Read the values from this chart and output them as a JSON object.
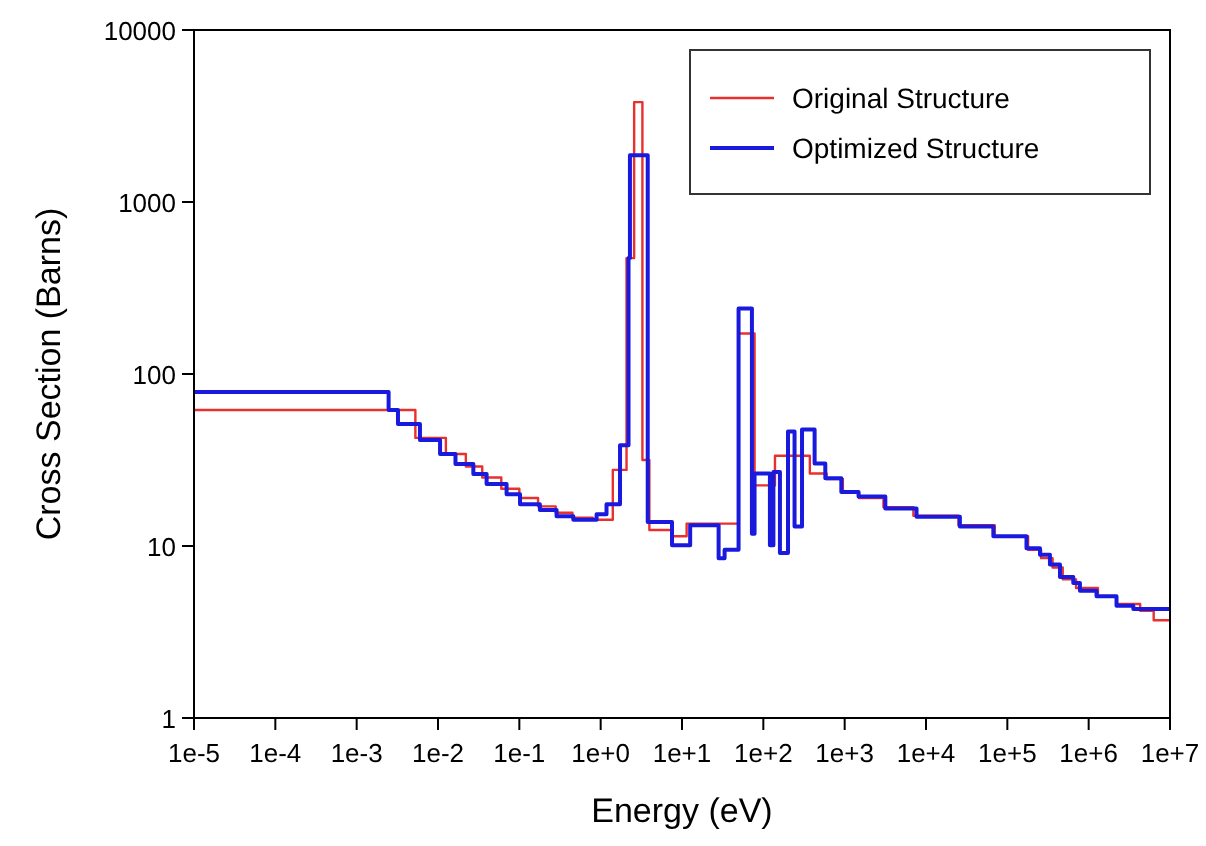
{
  "chart_data": {
    "type": "step",
    "xlabel": "Energy (eV)",
    "ylabel": "Cross Section (Barns)",
    "log": "xy",
    "grid": false,
    "legend": "top right",
    "xlim": [
      1e-05,
      10000000
    ],
    "ylim": [
      1,
      10000
    ],
    "xticks": [
      {
        "value": 1e-05,
        "label": "1e-5"
      },
      {
        "value": 0.0001,
        "label": "1e-4"
      },
      {
        "value": 0.001,
        "label": "1e-3"
      },
      {
        "value": 0.01,
        "label": "1e-2"
      },
      {
        "value": 0.1,
        "label": "1e-1"
      },
      {
        "value": 1,
        "label": "1e+0"
      },
      {
        "value": 10,
        "label": "1e+1"
      },
      {
        "value": 100,
        "label": "1e+2"
      },
      {
        "value": 1000,
        "label": "1e+3"
      },
      {
        "value": 10000,
        "label": "1e+4"
      },
      {
        "value": 100000,
        "label": "1e+5"
      },
      {
        "value": 1000000,
        "label": "1e+6"
      },
      {
        "value": 10000000,
        "label": "1e+7"
      }
    ],
    "yticks": [
      1,
      10,
      100,
      1000,
      10000
    ],
    "series": [
      {
        "name": "Original Structure",
        "color": "#e8302f",
        "x": [
          1e-05,
          0.00527,
          0.0125,
          0.022,
          0.035,
          0.06,
          0.1,
          0.17,
          0.28,
          0.45,
          0.8,
          1.41,
          2.08,
          2.58,
          3.26,
          3.97,
          7.54,
          11.4,
          49.6,
          78,
          139,
          373,
          600,
          950,
          1500,
          3000,
          7000,
          25000,
          70000,
          180000,
          260000,
          360000,
          480000,
          700000,
          1300000,
          2200000,
          4300000,
          6300000,
          10000000
        ],
        "values": [
          61.8,
          42.5,
          34.3,
          29,
          25,
          21.5,
          19,
          17,
          15.6,
          14.6,
          14.2,
          27.7,
          472,
          3810,
          31.6,
          12.4,
          11.4,
          13.5,
          172,
          22.5,
          33.5,
          26.4,
          24.5,
          20.5,
          19,
          16.8,
          15,
          13.2,
          11.4,
          9.5,
          8.5,
          7.5,
          6.4,
          5.7,
          5.1,
          4.6,
          4.2,
          3.7,
          3.7
        ]
      },
      {
        "name": "Optimized Structure",
        "color": "#1a1adf",
        "x": [
          1e-05,
          0.00247,
          0.00322,
          0.006,
          0.0106,
          0.0164,
          0.0272,
          0.0396,
          0.0697,
          0.102,
          0.179,
          0.287,
          0.461,
          0.891,
          1.18,
          1.73,
          2.2,
          2.29,
          3.79,
          7.54,
          12.6,
          28.2,
          33.4,
          49.6,
          72.4,
          78,
          120.5,
          133,
          160,
          201,
          242,
          299,
          427,
          578,
          910,
          1482,
          3162,
          7650,
          26100,
          67300,
          172000,
          252000,
          334000,
          444000,
          647000,
          781000,
          1250000,
          2200000,
          3540000,
          10000000
        ],
        "values": [
          78.6,
          61.8,
          51.2,
          41.3,
          34.3,
          30,
          26.2,
          22.9,
          20,
          17.5,
          16.2,
          14.9,
          14.2,
          15.3,
          17.5,
          38.5,
          472,
          1867,
          13.8,
          10.1,
          13.2,
          8.5,
          9.5,
          240,
          11.8,
          26.4,
          10.1,
          26.9,
          9.1,
          46.3,
          13,
          47.6,
          30.2,
          24.8,
          20.6,
          19.4,
          16.5,
          14.8,
          13,
          11.4,
          9.7,
          8.9,
          7.8,
          6.6,
          6.1,
          5.5,
          5.1,
          4.5,
          4.3,
          4.3
        ]
      }
    ]
  }
}
